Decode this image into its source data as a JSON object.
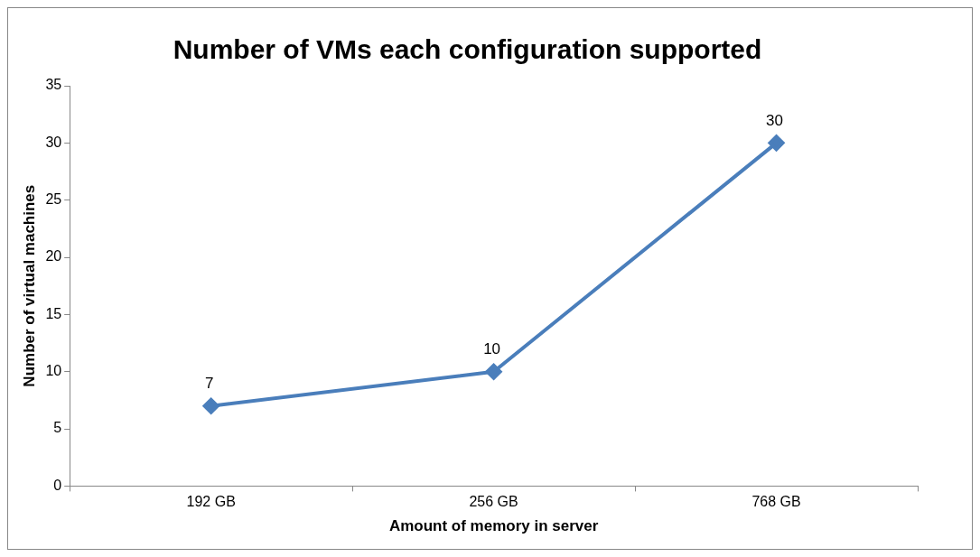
{
  "chart_data": {
    "type": "line",
    "title": "Number of VMs each configuration supported",
    "xlabel": "Amount of memory in server",
    "ylabel": "Number of virtual machines",
    "categories": [
      "192 GB",
      "256 GB",
      "768 GB"
    ],
    "series": [
      {
        "color": "#4a7ebb",
        "values": [
          7,
          10,
          30
        ]
      }
    ],
    "ylim": [
      0,
      35
    ],
    "yticks": [
      0,
      5,
      10,
      15,
      20,
      25,
      30,
      35
    ],
    "grid": false,
    "legend": false,
    "marker": "diamond",
    "line_style": "solid",
    "data_labels": true
  }
}
